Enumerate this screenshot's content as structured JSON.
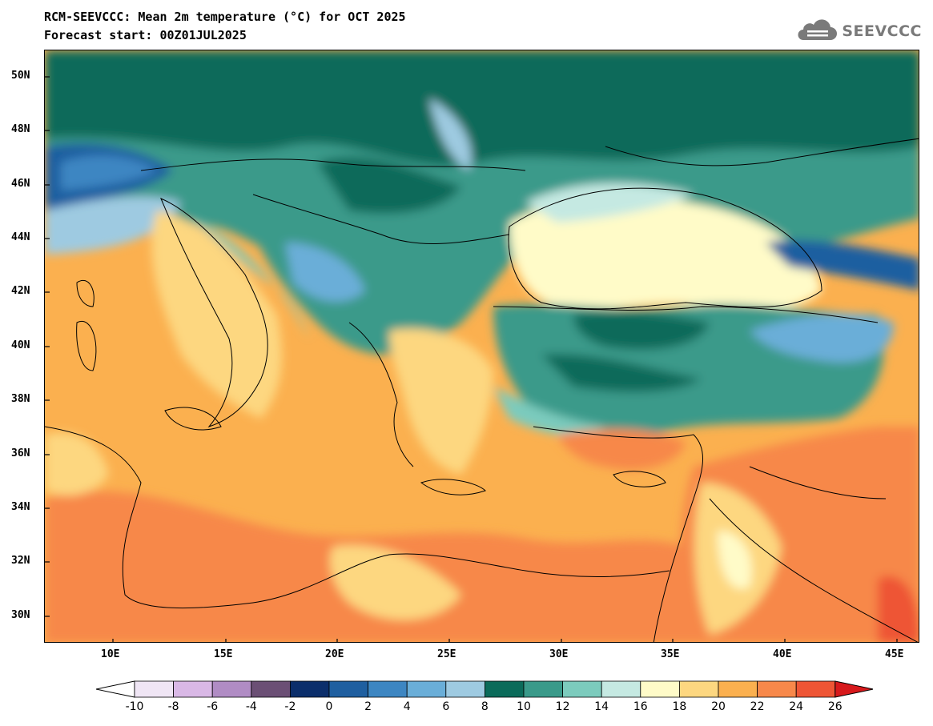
{
  "header": {
    "title": "RCM-SEEVCCC: Mean 2m temperature (°C) for OCT 2025",
    "subtitle": "Forecast start: 00Z01JUL2025"
  },
  "logo": {
    "text": "SEEVCCC",
    "icon": "cloud-icon",
    "color": "#7a7a7a"
  },
  "map": {
    "lat_labels": [
      "50N",
      "48N",
      "46N",
      "44N",
      "42N",
      "40N",
      "38N",
      "36N",
      "34N",
      "32N",
      "30N"
    ],
    "lon_labels": [
      "10E",
      "15E",
      "20E",
      "25E",
      "30E",
      "35E",
      "40E",
      "45E"
    ]
  },
  "colorbar": {
    "labels": [
      "-10",
      "-8",
      "-6",
      "-4",
      "-2",
      "0",
      "2",
      "4",
      "6",
      "8",
      "10",
      "12",
      "14",
      "16",
      "18",
      "20",
      "22",
      "24",
      "26"
    ],
    "under_color": "#ffffff",
    "over_color": "#d7191c",
    "bins": [
      {
        "color": "#f0e6f5"
      },
      {
        "color": "#d9b8e6"
      },
      {
        "color": "#b08cc4"
      },
      {
        "color": "#6b4f75"
      },
      {
        "color": "#0b2e6b"
      },
      {
        "color": "#1f5fa0"
      },
      {
        "color": "#3d86c2"
      },
      {
        "color": "#6aaed8"
      },
      {
        "color": "#9ecae1"
      },
      {
        "color": "#0b6b5a"
      },
      {
        "color": "#3a9a8a"
      },
      {
        "color": "#7ccbbd"
      },
      {
        "color": "#c5e9e2"
      },
      {
        "color": "#fffbc8"
      },
      {
        "color": "#fdd780"
      },
      {
        "color": "#fbb04f"
      },
      {
        "color": "#f7884a"
      },
      {
        "color": "#ee5535"
      }
    ]
  }
}
